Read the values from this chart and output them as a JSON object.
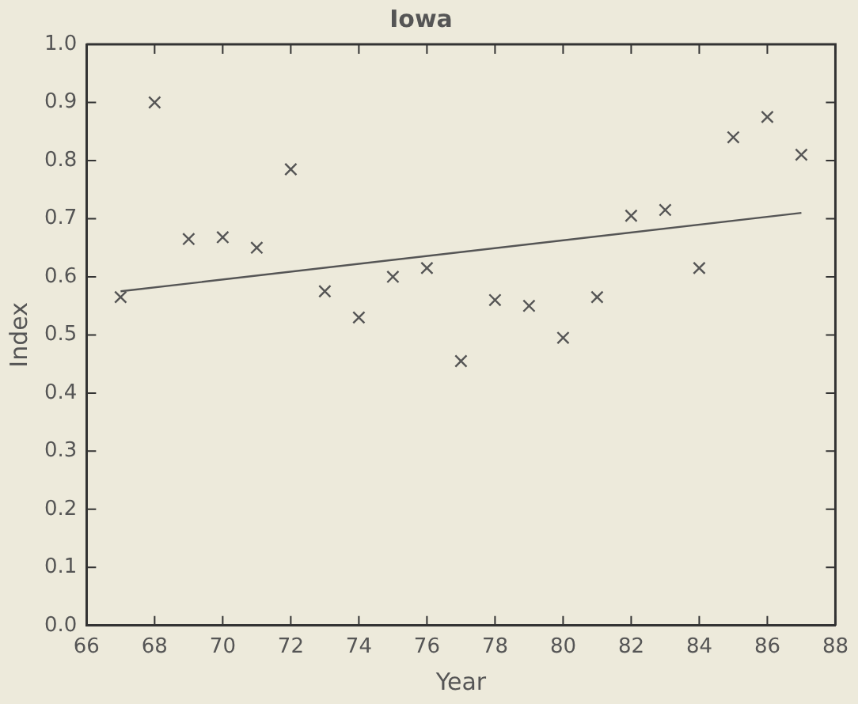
{
  "chart_data": {
    "type": "scatter",
    "title": "Iowa",
    "xlabel": "Year",
    "ylabel": "Index",
    "x": [
      67,
      68,
      69,
      70,
      71,
      72,
      73,
      74,
      75,
      76,
      77,
      78,
      79,
      80,
      81,
      82,
      83,
      84,
      85,
      86,
      87
    ],
    "series": [
      {
        "type": "scatter",
        "color": "#555555",
        "marker": "cross",
        "values": [
          0.565,
          0.9,
          0.665,
          0.668,
          0.65,
          0.785,
          0.575,
          0.53,
          0.6,
          0.615,
          0.455,
          0.56,
          0.55,
          0.495,
          0.565,
          0.705,
          0.715,
          0.615,
          0.84,
          0.875,
          0.81
        ]
      },
      {
        "type": "line",
        "color": "#555555",
        "marker": "none",
        "x": [
          67,
          87
        ],
        "values": [
          0.575,
          0.71
        ]
      }
    ],
    "xlim": [
      66,
      88
    ],
    "xticks": [
      66,
      68,
      70,
      72,
      74,
      76,
      78,
      80,
      82,
      84,
      86,
      88
    ],
    "ylim": [
      0,
      1
    ],
    "yticks": [
      {
        "value": 0,
        "label": "0.0"
      },
      {
        "value": 0.1,
        "label": "0.1"
      },
      {
        "value": 0.2,
        "label": "0.2"
      },
      {
        "value": 0.3,
        "label": "0.3"
      },
      {
        "value": 0.4,
        "label": "0.4"
      },
      {
        "value": 0.5,
        "label": "0.5"
      },
      {
        "value": 0.6,
        "label": "0.6"
      },
      {
        "value": 0.7,
        "label": "0.7"
      },
      {
        "value": 0.8,
        "label": "0.8"
      },
      {
        "value": 0.9,
        "label": "0.9"
      },
      {
        "value": 1,
        "label": "1.0"
      }
    ],
    "grid": false,
    "legend": false
  }
}
